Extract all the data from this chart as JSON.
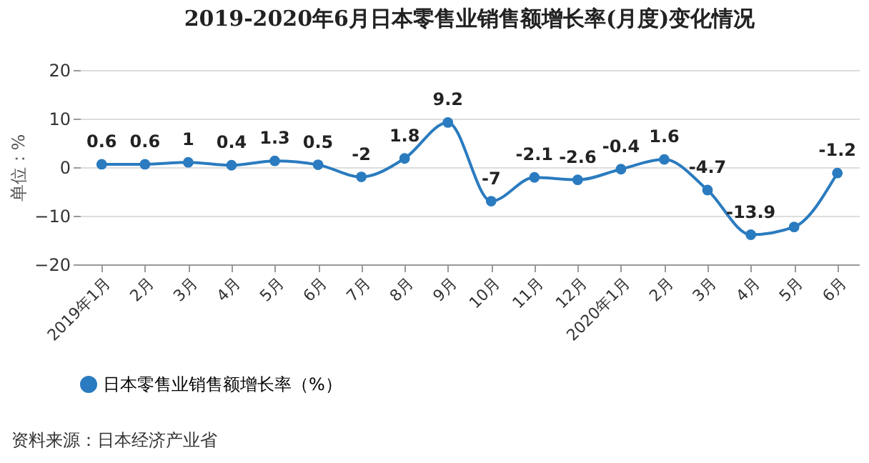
{
  "chart_data": {
    "type": "line",
    "title": "2019-2020年6月日本零售业销售额增长率(月度)变化情况",
    "ylabel": "单位：%",
    "categories": [
      "2019年1月",
      "2月",
      "3月",
      "4月",
      "5月",
      "6月",
      "7月",
      "8月",
      "9月",
      "10月",
      "11月",
      "12月",
      "2020年1月",
      "2月",
      "3月",
      "4月",
      "5月",
      "6月"
    ],
    "series": [
      {
        "name": "日本零售业销售额增长率（%）",
        "color": "#2a7bbf",
        "values": [
          0.6,
          0.6,
          1,
          0.4,
          1.3,
          0.5,
          -2,
          1.8,
          9.2,
          -7,
          -2.1,
          -2.6,
          -0.4,
          1.6,
          -4.7,
          -13.9,
          -12.3,
          -1.2
        ],
        "value_labels": [
          "0.6",
          "0.6",
          "1",
          "0.4",
          "1.3",
          "0.5",
          "-2",
          "1.8",
          "9.2",
          "-7",
          "-2.1",
          "-2.6",
          "-0.4",
          "1.6",
          "-4.7",
          "-13.9",
          null,
          "-1.2"
        ]
      }
    ],
    "ylim": [
      -20,
      20
    ],
    "yticks": [
      -20,
      -10,
      0,
      10,
      20
    ],
    "grid": "y",
    "legend": "bottom",
    "marker": "circle",
    "line_style": "solid",
    "annotations": [
      "资料来源：日本经济产业省"
    ]
  }
}
